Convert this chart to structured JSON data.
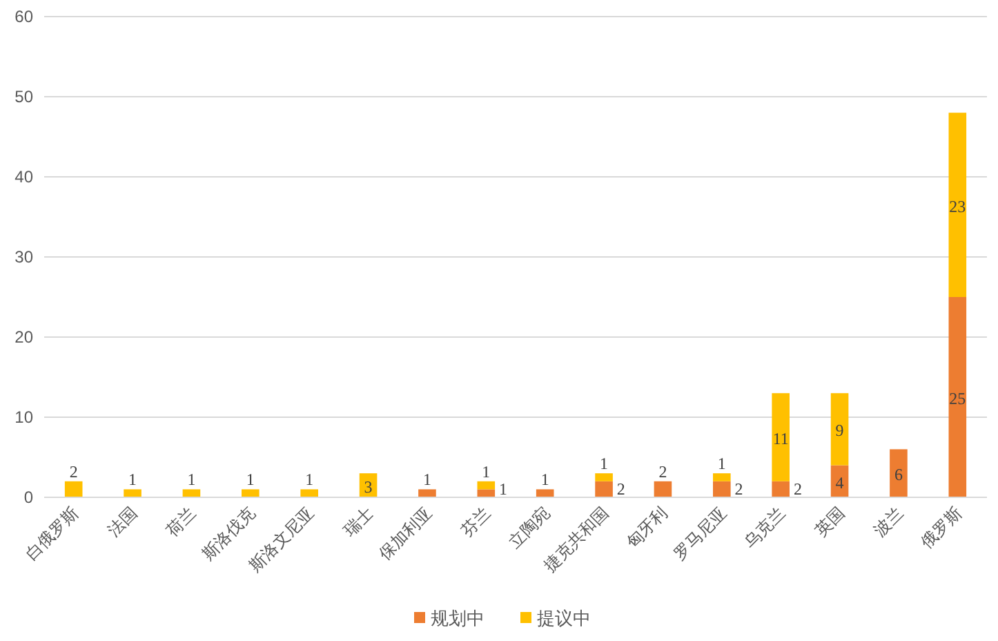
{
  "chart_data": {
    "type": "bar",
    "stacked": true,
    "data_labels": true,
    "categories": [
      "白俄罗斯",
      "法国",
      "荷兰",
      "斯洛伐克",
      "斯洛文尼亚",
      "瑞士",
      "保加利亚",
      "芬兰",
      "立陶宛",
      "捷克共和国",
      "匈牙利",
      "罗马尼亚",
      "乌克兰",
      "英国",
      "波兰",
      "俄罗斯"
    ],
    "series": [
      {
        "name": "规划中",
        "color": "#ed7d31",
        "values": [
          null,
          null,
          null,
          null,
          null,
          null,
          1,
          1,
          1,
          2,
          2,
          2,
          2,
          4,
          6,
          25
        ]
      },
      {
        "name": "提议中",
        "color": "#ffc000",
        "values": [
          2,
          1,
          1,
          1,
          1,
          3,
          null,
          1,
          null,
          1,
          null,
          1,
          11,
          9,
          null,
          23
        ]
      }
    ],
    "ylim": [
      0,
      60
    ],
    "yticks": [
      0,
      10,
      20,
      30,
      40,
      50,
      60
    ],
    "grid": "y",
    "legend": "bottom"
  }
}
